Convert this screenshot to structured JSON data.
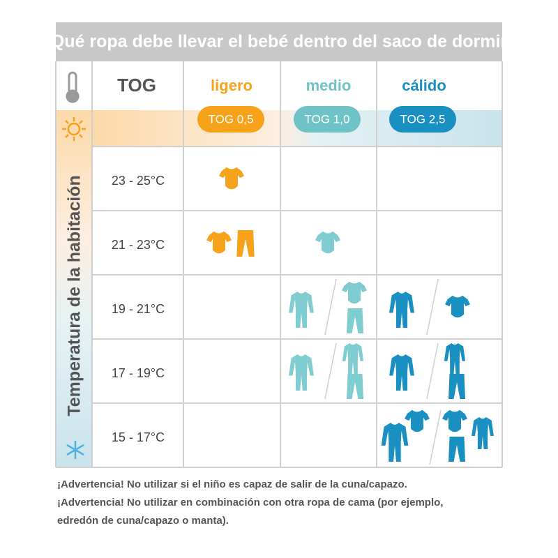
{
  "title": "Qué ropa debe llevar el bebé dentro del saco de dormir",
  "header": {
    "tog": "TOG",
    "columns": [
      {
        "name": "ligero",
        "tog": "TOG 0,5"
      },
      {
        "name": "medio",
        "tog": "TOG 1,0"
      },
      {
        "name": "cálido",
        "tog": "TOG 2,5"
      }
    ]
  },
  "side_label": "Temperatura de la habitación",
  "rows": [
    "23 - 25°C",
    "21 - 23°C",
    "19 - 21°C",
    "17 - 19°C",
    "15 - 17°C"
  ],
  "warnings": [
    "¡Advertencia! No utilizar si el niño es capaz de salir de la cuna/capazo.",
    "¡Advertencia! No utilizar en combinación con otra ropa de cama (por ejemplo,",
    "edredón de cuna/capazo o manta)."
  ]
}
